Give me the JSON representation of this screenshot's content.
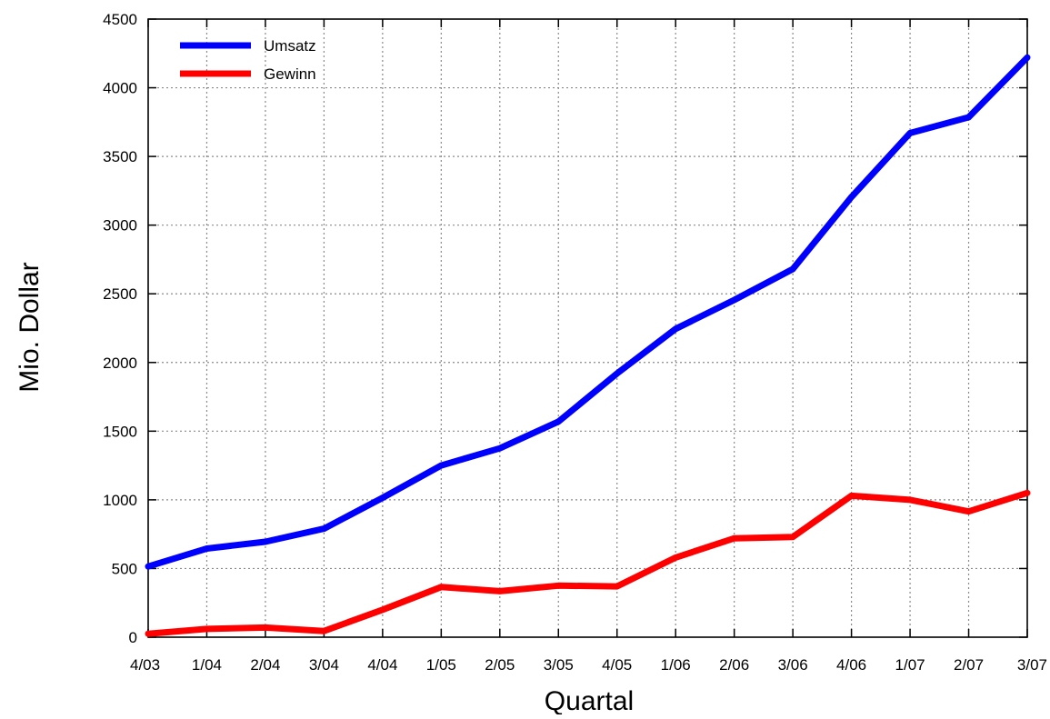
{
  "chart_data": {
    "type": "line",
    "title": "",
    "xlabel": "Quartal",
    "ylabel": "Mio. Dollar",
    "categories": [
      "4/03",
      "1/04",
      "2/04",
      "3/04",
      "4/04",
      "1/05",
      "2/05",
      "3/05",
      "4/05",
      "1/06",
      "2/06",
      "3/06",
      "4/06",
      "1/07",
      "2/07",
      "3/07"
    ],
    "series": [
      {
        "name": "Umsatz",
        "color": "#0000ff",
        "values": [
          515,
          645,
          695,
          790,
          1015,
          1250,
          1375,
          1570,
          1920,
          2245,
          2455,
          2680,
          3205,
          3670,
          3785,
          4220
        ]
      },
      {
        "name": "Gewinn",
        "color": "#ff0000",
        "values": [
          25,
          60,
          70,
          45,
          200,
          365,
          335,
          375,
          370,
          580,
          720,
          730,
          1030,
          1000,
          915,
          1050
        ]
      }
    ],
    "ylim": [
      0,
      4500
    ],
    "yticks": [
      0,
      500,
      1000,
      1500,
      2000,
      2500,
      3000,
      3500,
      4000,
      4500
    ],
    "grid": true,
    "legend_position": "top-left"
  }
}
